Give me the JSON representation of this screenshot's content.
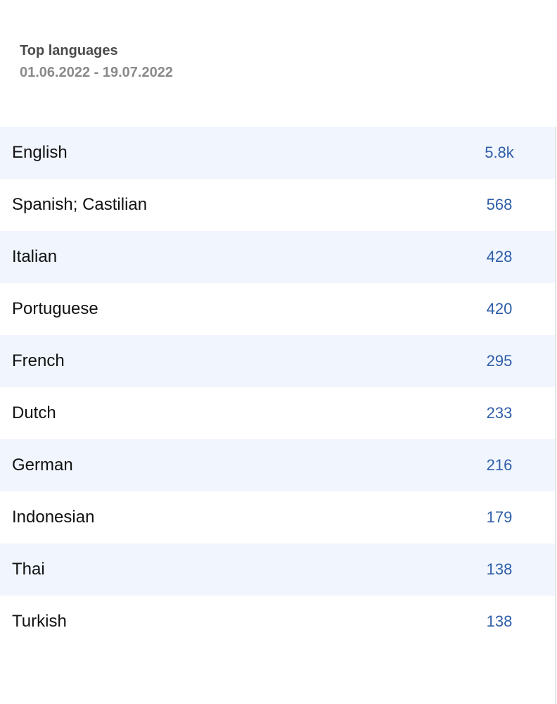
{
  "header": {
    "title": "Top languages",
    "date_range": "01.06.2022 - 19.07.2022"
  },
  "rows": [
    {
      "language": "English",
      "value": "5.8k"
    },
    {
      "language": "Spanish; Castilian",
      "value": "568"
    },
    {
      "language": "Italian",
      "value": "428"
    },
    {
      "language": "Portuguese",
      "value": "420"
    },
    {
      "language": "French",
      "value": "295"
    },
    {
      "language": "Dutch",
      "value": "233"
    },
    {
      "language": "German",
      "value": "216"
    },
    {
      "language": "Indonesian",
      "value": "179"
    },
    {
      "language": "Thai",
      "value": "138"
    },
    {
      "language": "Turkish",
      "value": "138"
    }
  ],
  "colors": {
    "accent": "#2f5ea8",
    "row_stripe": "#f0f5fe"
  }
}
